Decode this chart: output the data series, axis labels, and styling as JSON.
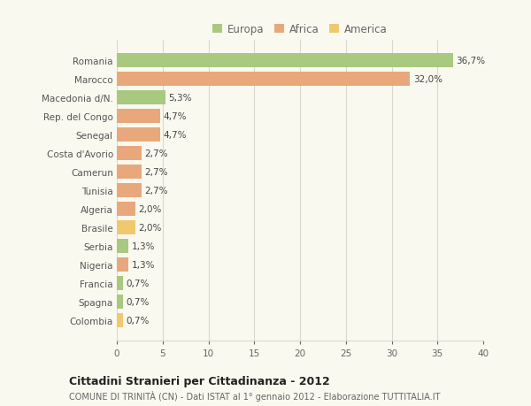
{
  "categories": [
    "Romania",
    "Marocco",
    "Macedonia d/N.",
    "Rep. del Congo",
    "Senegal",
    "Costa d'Avorio",
    "Camerun",
    "Tunisia",
    "Algeria",
    "Brasile",
    "Serbia",
    "Nigeria",
    "Francia",
    "Spagna",
    "Colombia"
  ],
  "values": [
    36.7,
    32.0,
    5.3,
    4.7,
    4.7,
    2.7,
    2.7,
    2.7,
    2.0,
    2.0,
    1.3,
    1.3,
    0.7,
    0.7,
    0.7
  ],
  "labels": [
    "36,7%",
    "32,0%",
    "5,3%",
    "4,7%",
    "4,7%",
    "2,7%",
    "2,7%",
    "2,7%",
    "2,0%",
    "2,0%",
    "1,3%",
    "1,3%",
    "0,7%",
    "0,7%",
    "0,7%"
  ],
  "colors": [
    "#a8c97f",
    "#e8a87c",
    "#a8c97f",
    "#e8a87c",
    "#e8a87c",
    "#e8a87c",
    "#e8a87c",
    "#e8a87c",
    "#e8a87c",
    "#f0c96e",
    "#a8c97f",
    "#e8a87c",
    "#a8c97f",
    "#a8c97f",
    "#f0c96e"
  ],
  "legend_labels": [
    "Europa",
    "Africa",
    "America"
  ],
  "legend_colors": [
    "#a8c97f",
    "#e8a87c",
    "#f0c96e"
  ],
  "title": "Cittadini Stranieri per Cittadinanza - 2012",
  "subtitle": "COMUNE DI TRINITÀ (CN) - Dati ISTAT al 1° gennaio 2012 - Elaborazione TUTTITALIA.IT",
  "xlim": [
    0,
    40
  ],
  "xticks": [
    0,
    5,
    10,
    15,
    20,
    25,
    30,
    35,
    40
  ],
  "background_color": "#f9f9f0",
  "grid_color": "#d8d8cc",
  "bar_height": 0.75
}
